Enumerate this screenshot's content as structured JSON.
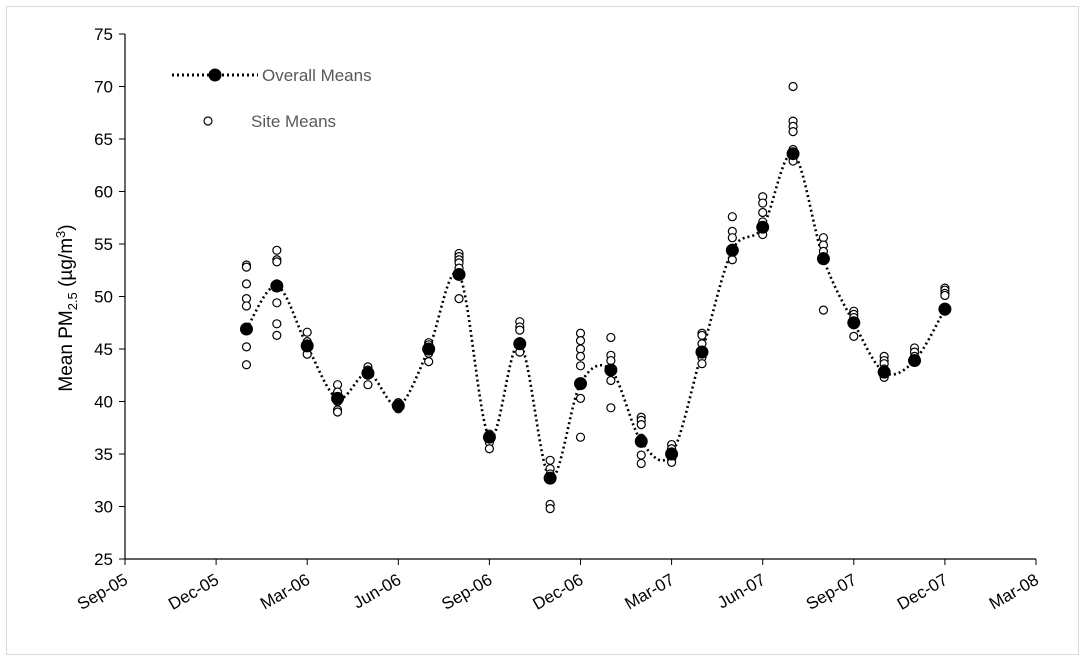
{
  "chart_data": {
    "type": "scatter",
    "title": "",
    "xlabel": "",
    "ylabel": {
      "prefix": "Mean PM",
      "subscript": "2.5",
      "unit_prefix": " (µg/m",
      "superscript": "3",
      "unit_suffix": ")"
    },
    "ylim": [
      25,
      75
    ],
    "yticks": [
      25,
      30,
      35,
      40,
      45,
      50,
      55,
      60,
      65,
      70,
      75
    ],
    "xlim": [
      "Sep-05",
      "Mar-08"
    ],
    "xticks": [
      "Sep-05",
      "Dec-05",
      "Mar-06",
      "Jun-06",
      "Sep-06",
      "Dec-06",
      "Mar-07",
      "Jun-07",
      "Sep-07",
      "Dec-07",
      "Mar-08"
    ],
    "grid": false,
    "legend": {
      "position": "top-left"
    },
    "series": [
      {
        "name": "Overall Means",
        "style": "dotted-line-filled-marker",
        "color": "#000000",
        "points": [
          {
            "x": "Jan-06",
            "y": 46.9
          },
          {
            "x": "Feb-06",
            "y": 51.0
          },
          {
            "x": "Mar-06",
            "y": 45.3
          },
          {
            "x": "Apr-06",
            "y": 40.3
          },
          {
            "x": "May-06",
            "y": 42.7
          },
          {
            "x": "Jun-06",
            "y": 39.6
          },
          {
            "x": "Jul-06",
            "y": 45.0
          },
          {
            "x": "Aug-06",
            "y": 52.1
          },
          {
            "x": "Sep-06",
            "y": 36.6
          },
          {
            "x": "Oct-06",
            "y": 45.5
          },
          {
            "x": "Nov-06",
            "y": 32.7
          },
          {
            "x": "Dec-06",
            "y": 41.7
          },
          {
            "x": "Jan-07",
            "y": 43.0
          },
          {
            "x": "Feb-07",
            "y": 36.2
          },
          {
            "x": "Mar-07",
            "y": 35.0
          },
          {
            "x": "Apr-07",
            "y": 44.7
          },
          {
            "x": "May-07",
            "y": 54.4
          },
          {
            "x": "Jun-07",
            "y": 56.6
          },
          {
            "x": "Jul-07",
            "y": 63.6
          },
          {
            "x": "Aug-07",
            "y": 53.6
          },
          {
            "x": "Sep-07",
            "y": 47.5
          },
          {
            "x": "Oct-07",
            "y": 42.8
          },
          {
            "x": "Nov-07",
            "y": 43.9
          },
          {
            "x": "Dec-07",
            "y": 48.8
          }
        ]
      },
      {
        "name": "Site Means",
        "style": "open-circle",
        "color": "#000000",
        "points": [
          {
            "x": "Jan-06",
            "values": [
              53.0,
              52.8,
              51.2,
              49.8,
              49.1,
              45.2,
              43.5
            ]
          },
          {
            "x": "Feb-06",
            "values": [
              54.4,
              53.5,
              53.3,
              51.2,
              49.4,
              47.4,
              46.3
            ]
          },
          {
            "x": "Mar-06",
            "values": [
              46.6,
              45.7,
              45.3,
              45.0,
              44.5
            ]
          },
          {
            "x": "Apr-06",
            "values": [
              41.6,
              40.9,
              40.3,
              40.0,
              39.2,
              39.0
            ]
          },
          {
            "x": "May-06",
            "values": [
              43.3,
              43.0,
              42.8,
              42.5,
              41.6
            ]
          },
          {
            "x": "Jun-06",
            "values": [
              39.9,
              39.6,
              39.4,
              39.3
            ]
          },
          {
            "x": "Jul-06",
            "values": [
              45.6,
              45.4,
              45.1,
              44.6,
              43.8
            ]
          },
          {
            "x": "Aug-06",
            "values": [
              54.1,
              53.8,
              53.5,
              53.2,
              52.7,
              49.8
            ]
          },
          {
            "x": "Sep-06",
            "values": [
              36.9,
              36.5,
              36.1,
              35.5
            ]
          },
          {
            "x": "Oct-06",
            "values": [
              47.6,
              47.1,
              46.8,
              45.7,
              45.2,
              44.7
            ]
          },
          {
            "x": "Nov-06",
            "values": [
              34.4,
              33.6,
              33.1,
              30.2,
              29.8
            ]
          },
          {
            "x": "Dec-06",
            "values": [
              46.5,
              45.8,
              45.0,
              44.3,
              43.4,
              40.3,
              36.6
            ]
          },
          {
            "x": "Jan-07",
            "values": [
              46.1,
              44.4,
              43.9,
              42.9,
              42.0,
              39.4
            ]
          },
          {
            "x": "Feb-07",
            "values": [
              38.5,
              38.2,
              37.8,
              36.5,
              36.2,
              34.9,
              34.1
            ]
          },
          {
            "x": "Mar-07",
            "values": [
              35.9,
              35.5,
              35.2,
              34.8,
              34.5,
              34.2
            ]
          },
          {
            "x": "Apr-07",
            "values": [
              46.5,
              46.3,
              45.5,
              44.9,
              44.2,
              43.6
            ]
          },
          {
            "x": "May-07",
            "values": [
              57.6,
              56.2,
              55.6,
              54.6,
              54.2,
              53.5
            ]
          },
          {
            "x": "Jun-07",
            "values": [
              59.5,
              58.9,
              58.0,
              57.1,
              56.6,
              56.3,
              55.9
            ]
          },
          {
            "x": "Jul-07",
            "values": [
              70.0,
              66.7,
              66.2,
              65.7,
              64.0,
              63.7,
              63.2,
              62.9
            ]
          },
          {
            "x": "Aug-07",
            "values": [
              55.6,
              54.9,
              54.3,
              53.8,
              53.5,
              48.7
            ]
          },
          {
            "x": "Sep-07",
            "values": [
              48.6,
              48.3,
              48.0,
              47.6,
              47.3,
              46.2
            ]
          },
          {
            "x": "Oct-07",
            "values": [
              44.3,
              43.9,
              43.6,
              43.1,
              42.7,
              42.3
            ]
          },
          {
            "x": "Nov-07",
            "values": [
              45.1,
              44.7,
              44.3,
              44.0,
              43.8
            ]
          },
          {
            "x": "Dec-07",
            "values": [
              50.8,
              50.6,
              50.3,
              50.1,
              48.9,
              48.6
            ]
          }
        ]
      }
    ]
  }
}
